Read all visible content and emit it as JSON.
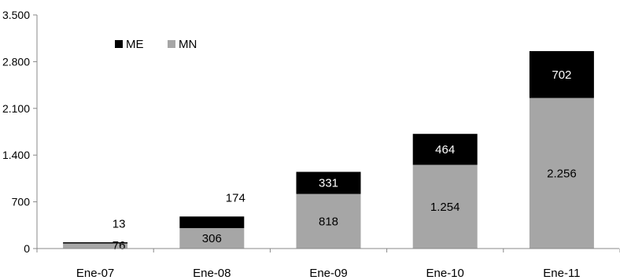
{
  "chart_data": {
    "type": "bar",
    "stacked": true,
    "categories": [
      "Ene-07",
      "Ene-08",
      "Ene-09",
      "Ene-10",
      "Ene-11"
    ],
    "series": [
      {
        "name": "MN",
        "color": "#a6a6a6",
        "values": [
          76,
          306,
          818,
          1254,
          2256
        ],
        "labels": [
          "76",
          "306",
          "818",
          "1.254",
          "2.256"
        ]
      },
      {
        "name": "ME",
        "color": "#000000",
        "values": [
          13,
          174,
          331,
          464,
          702
        ],
        "labels": [
          "13",
          "174",
          "331",
          "464",
          "702"
        ]
      }
    ],
    "ylim": [
      0,
      3500
    ],
    "yticks": [
      0,
      700,
      1400,
      2100,
      2800,
      3500
    ],
    "ytick_labels": [
      "0",
      "700",
      "1.400",
      "2.100",
      "2.800",
      "3.500"
    ],
    "legend_position": "top-left",
    "legend_order": [
      "ME",
      "MN"
    ],
    "grid": false
  }
}
